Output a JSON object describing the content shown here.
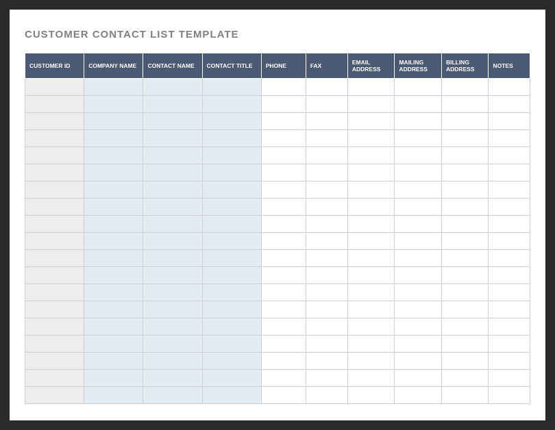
{
  "title": "CUSTOMER CONTACT LIST TEMPLATE",
  "table": {
    "columns": [
      "CUSTOMER ID",
      "COMPANY NAME",
      "CONTACT NAME",
      "CONTACT TITLE",
      "PHONE",
      "FAX",
      "EMAIL ADDRESS",
      "MAILING ADDRESS",
      "BILLING ADDRESS",
      "NOTES"
    ],
    "column_bg_groups": {
      "id_column_bg": "#ededed",
      "name_columns_bg": "#e3ebf3",
      "other_columns_bg": "#ffffff"
    },
    "header_bg": "#4a5a74",
    "header_text_color": "#ffffff",
    "grid_color": "#d0d0d0",
    "row_count": 19,
    "rows": [
      [
        "",
        "",
        "",
        "",
        "",
        "",
        "",
        "",
        "",
        ""
      ],
      [
        "",
        "",
        "",
        "",
        "",
        "",
        "",
        "",
        "",
        ""
      ],
      [
        "",
        "",
        "",
        "",
        "",
        "",
        "",
        "",
        "",
        ""
      ],
      [
        "",
        "",
        "",
        "",
        "",
        "",
        "",
        "",
        "",
        ""
      ],
      [
        "",
        "",
        "",
        "",
        "",
        "",
        "",
        "",
        "",
        ""
      ],
      [
        "",
        "",
        "",
        "",
        "",
        "",
        "",
        "",
        "",
        ""
      ],
      [
        "",
        "",
        "",
        "",
        "",
        "",
        "",
        "",
        "",
        ""
      ],
      [
        "",
        "",
        "",
        "",
        "",
        "",
        "",
        "",
        "",
        ""
      ],
      [
        "",
        "",
        "",
        "",
        "",
        "",
        "",
        "",
        "",
        ""
      ],
      [
        "",
        "",
        "",
        "",
        "",
        "",
        "",
        "",
        "",
        ""
      ],
      [
        "",
        "",
        "",
        "",
        "",
        "",
        "",
        "",
        "",
        ""
      ],
      [
        "",
        "",
        "",
        "",
        "",
        "",
        "",
        "",
        "",
        ""
      ],
      [
        "",
        "",
        "",
        "",
        "",
        "",
        "",
        "",
        "",
        ""
      ],
      [
        "",
        "",
        "",
        "",
        "",
        "",
        "",
        "",
        "",
        ""
      ],
      [
        "",
        "",
        "",
        "",
        "",
        "",
        "",
        "",
        "",
        ""
      ],
      [
        "",
        "",
        "",
        "",
        "",
        "",
        "",
        "",
        "",
        ""
      ],
      [
        "",
        "",
        "",
        "",
        "",
        "",
        "",
        "",
        "",
        ""
      ],
      [
        "",
        "",
        "",
        "",
        "",
        "",
        "",
        "",
        "",
        ""
      ],
      [
        "",
        "",
        "",
        "",
        "",
        "",
        "",
        "",
        "",
        ""
      ]
    ]
  },
  "page_bg": "#ffffff",
  "frame_bg": "#2a2a2a",
  "title_color": "#808080"
}
